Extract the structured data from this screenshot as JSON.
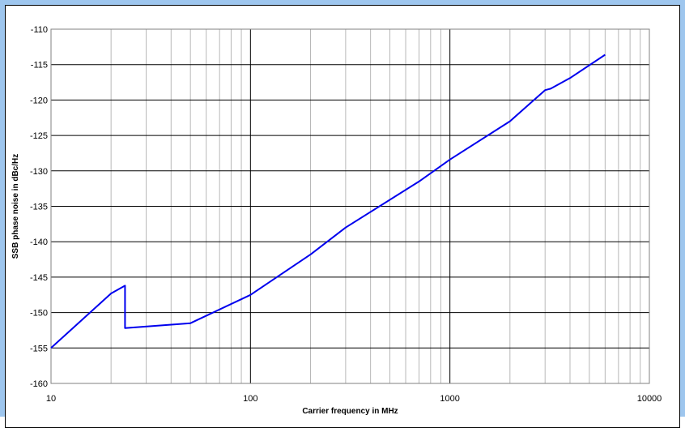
{
  "chart_data": {
    "type": "line",
    "xlabel": "Carrier frequency in MHz",
    "ylabel": "SSB phase noise in dBc/Hz",
    "x_scale": "log",
    "xlim": [
      10,
      10000
    ],
    "ylim": [
      -160,
      -110
    ],
    "x_ticks": [
      "10",
      "100",
      "1000",
      "10000"
    ],
    "y_ticks": [
      "-110",
      "-115",
      "-120",
      "-125",
      "-130",
      "-135",
      "-140",
      "-145",
      "-150",
      "-155",
      "-160"
    ],
    "grid": true,
    "series": [
      {
        "color": "#0000ee",
        "x": [
          10,
          20,
          23.5,
          23.5,
          50,
          100,
          200,
          300,
          700,
          1000,
          2000,
          3000,
          3200,
          4000,
          6000
        ],
        "y": [
          -155,
          -147.3,
          -146.2,
          -152.2,
          -151.5,
          -147.5,
          -141.8,
          -138,
          -131.5,
          -128.4,
          -123,
          -118.6,
          -118.4,
          -116.9,
          -113.6
        ]
      }
    ]
  },
  "colors": {
    "background": "#9ec6ee",
    "plot_background": "#ffffff",
    "line": "#0000ee",
    "grid": "#b0b0b0"
  }
}
